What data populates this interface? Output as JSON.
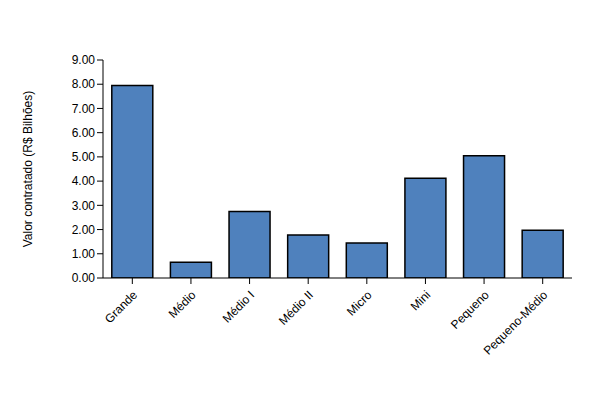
{
  "chart_data": {
    "type": "bar",
    "y_label": "Valor contratado (R$ Bilhões)",
    "categories": [
      "Grande",
      "Médio",
      "Médio I",
      "Médio II",
      "Micro",
      "Mini",
      "Pequeno",
      "Pequeno-Médio"
    ],
    "values": [
      7.95,
      0.65,
      2.75,
      1.78,
      1.45,
      4.12,
      5.05,
      1.97
    ],
    "color": "#4f81bd",
    "ylim": [
      0,
      9
    ],
    "yticks": [
      {
        "value": 0,
        "label": "0.00"
      },
      {
        "value": 1,
        "label": "1.00"
      },
      {
        "value": 2,
        "label": "2.00"
      },
      {
        "value": 3,
        "label": "3.00"
      },
      {
        "value": 4,
        "label": "4.00"
      },
      {
        "value": 5,
        "label": "5.00"
      },
      {
        "value": 6,
        "label": "6.00"
      },
      {
        "value": 7,
        "label": "7.00"
      },
      {
        "value": 8,
        "label": "8.00"
      },
      {
        "value": 9,
        "label": "9.00"
      }
    ],
    "grid": false
  }
}
